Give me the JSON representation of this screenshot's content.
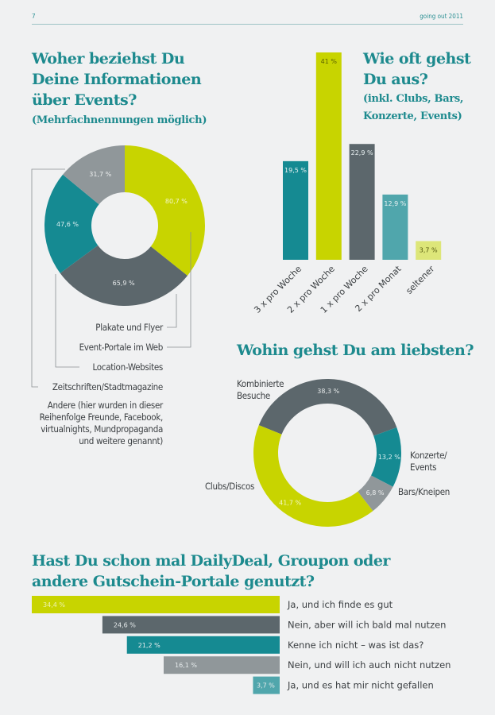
{
  "header": {
    "page_number": "7",
    "publication": "going out 2011"
  },
  "colors": {
    "lime": "#c8d400",
    "teal": "#158a92",
    "dark_gray": "#5c676c",
    "gray": "#90979a",
    "light_teal": "#50a6ac",
    "pale_lime": "#dde679",
    "title": "#1d8a8e"
  },
  "chart_data": [
    {
      "type": "pie",
      "style": "donut",
      "title": "Woher beziehst Du Deine Informationen über Events?",
      "subtitle": "(Mehrfachnennungen möglich)",
      "slices": [
        {
          "label": "Plakate und Flyer",
          "value": 80.7,
          "value_label": "80,7 %",
          "color": "#c8d400"
        },
        {
          "label": "Event-Portale im Web",
          "value": 65.9,
          "value_label": "65,9 %",
          "color": "#5c676c"
        },
        {
          "label": "Location-Websites",
          "value": 47.6,
          "value_label": "47,6 %",
          "color": "#158a92"
        },
        {
          "label": "Zeitschriften/Stadtmagazine",
          "value": 31.7,
          "value_label": "31,7 %",
          "color": "#90979a"
        }
      ],
      "note_lines": [
        "Andere (hier wurden in dieser",
        "Reihenfolge Freunde, Facebook,",
        "virtualnights, Mundpropaganda",
        "und weitere genannt)"
      ]
    },
    {
      "type": "bar",
      "title_lines": [
        "Wie oft gehst",
        "Du aus?"
      ],
      "subtitle_lines": [
        "(inkl. Clubs, Bars,",
        "Konzerte, Events)"
      ],
      "categories": [
        "3 x pro Woche",
        "2 x pro Woche",
        "1 x pro Woche",
        "2 x pro Monat",
        "seltener"
      ],
      "values": [
        19.5,
        41,
        22.9,
        12.9,
        3.7
      ],
      "value_labels": [
        "19,5 %",
        "41 %",
        "22,9 %",
        "12,9 %",
        "3,7 %"
      ],
      "colors": [
        "#158a92",
        "#c8d400",
        "#5c676c",
        "#50a6ac",
        "#dde679"
      ],
      "ylim": [
        0,
        41
      ]
    },
    {
      "type": "pie",
      "style": "donut",
      "title": "Wohin gehst Du am liebsten?",
      "slices": [
        {
          "label": "Kombinierte Besuche",
          "value": 38.3,
          "value_label": "38,3 %",
          "color": "#5c676c"
        },
        {
          "label": "Konzerte/ Events",
          "value": 13.2,
          "value_label": "13,2 %",
          "color": "#158a92"
        },
        {
          "label": "Bars/Kneipen",
          "value": 6.8,
          "value_label": "6,8 %",
          "color": "#90979a"
        },
        {
          "label": "Clubs/Discos",
          "value": 41.7,
          "value_label": "41,7 %",
          "color": "#c8d400"
        }
      ]
    },
    {
      "type": "bar",
      "orientation": "horizontal",
      "title_lines": [
        "Hast Du schon mal DailyDeal, Groupon oder",
        "andere Gutschein-Portale genutzt?"
      ],
      "categories": [
        "Ja, und ich finde es gut",
        "Nein, aber will ich bald mal nutzen",
        "Kenne ich nicht – was ist das?",
        "Nein, und will ich auch nicht nutzen",
        "Ja, und es hat mir nicht gefallen"
      ],
      "values": [
        34.4,
        24.6,
        21.2,
        16.1,
        3.7
      ],
      "value_labels": [
        "34,4 %",
        "24,6 %",
        "21,2 %",
        "16,1 %",
        "3,7 %"
      ],
      "colors": [
        "#c8d400",
        "#5c676c",
        "#158a92",
        "#90979a",
        "#50a6ac"
      ],
      "xlim": [
        0,
        34.4
      ]
    }
  ]
}
